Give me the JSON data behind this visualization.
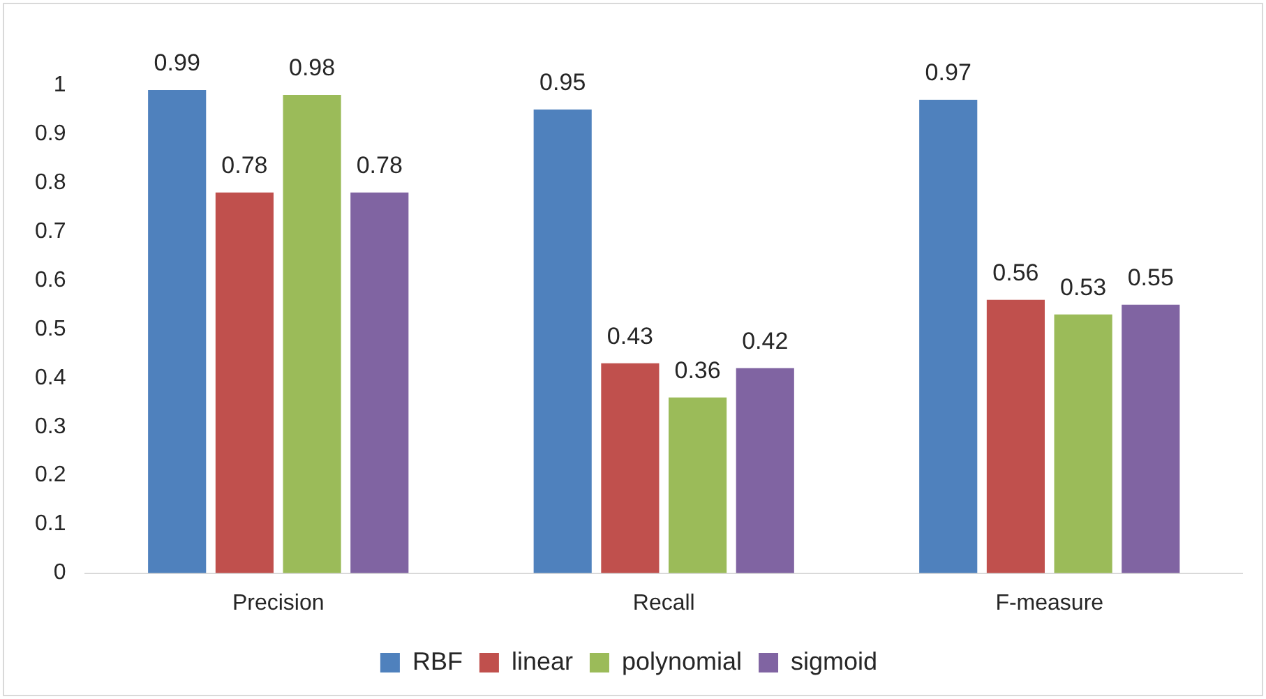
{
  "chart_data": {
    "type": "bar",
    "categories": [
      "Precision",
      "Recall",
      "F-measure"
    ],
    "series": [
      {
        "name": "RBF",
        "color": "#4f81bd",
        "values": [
          0.99,
          0.95,
          0.97
        ]
      },
      {
        "name": "linear",
        "color": "#c0504d",
        "values": [
          0.78,
          0.43,
          0.56
        ]
      },
      {
        "name": "polynomial",
        "color": "#9bbb59",
        "values": [
          0.98,
          0.36,
          0.53
        ]
      },
      {
        "name": "sigmoid",
        "color": "#8064a2",
        "values": [
          0.78,
          0.42,
          0.55
        ]
      }
    ],
    "ylim": [
      0,
      1
    ],
    "yticks": [
      0,
      0.1,
      0.2,
      0.3,
      0.4,
      0.5,
      0.6,
      0.7,
      0.8,
      0.9,
      1
    ],
    "grid": false,
    "legend": "bottom",
    "data_labels": true
  }
}
